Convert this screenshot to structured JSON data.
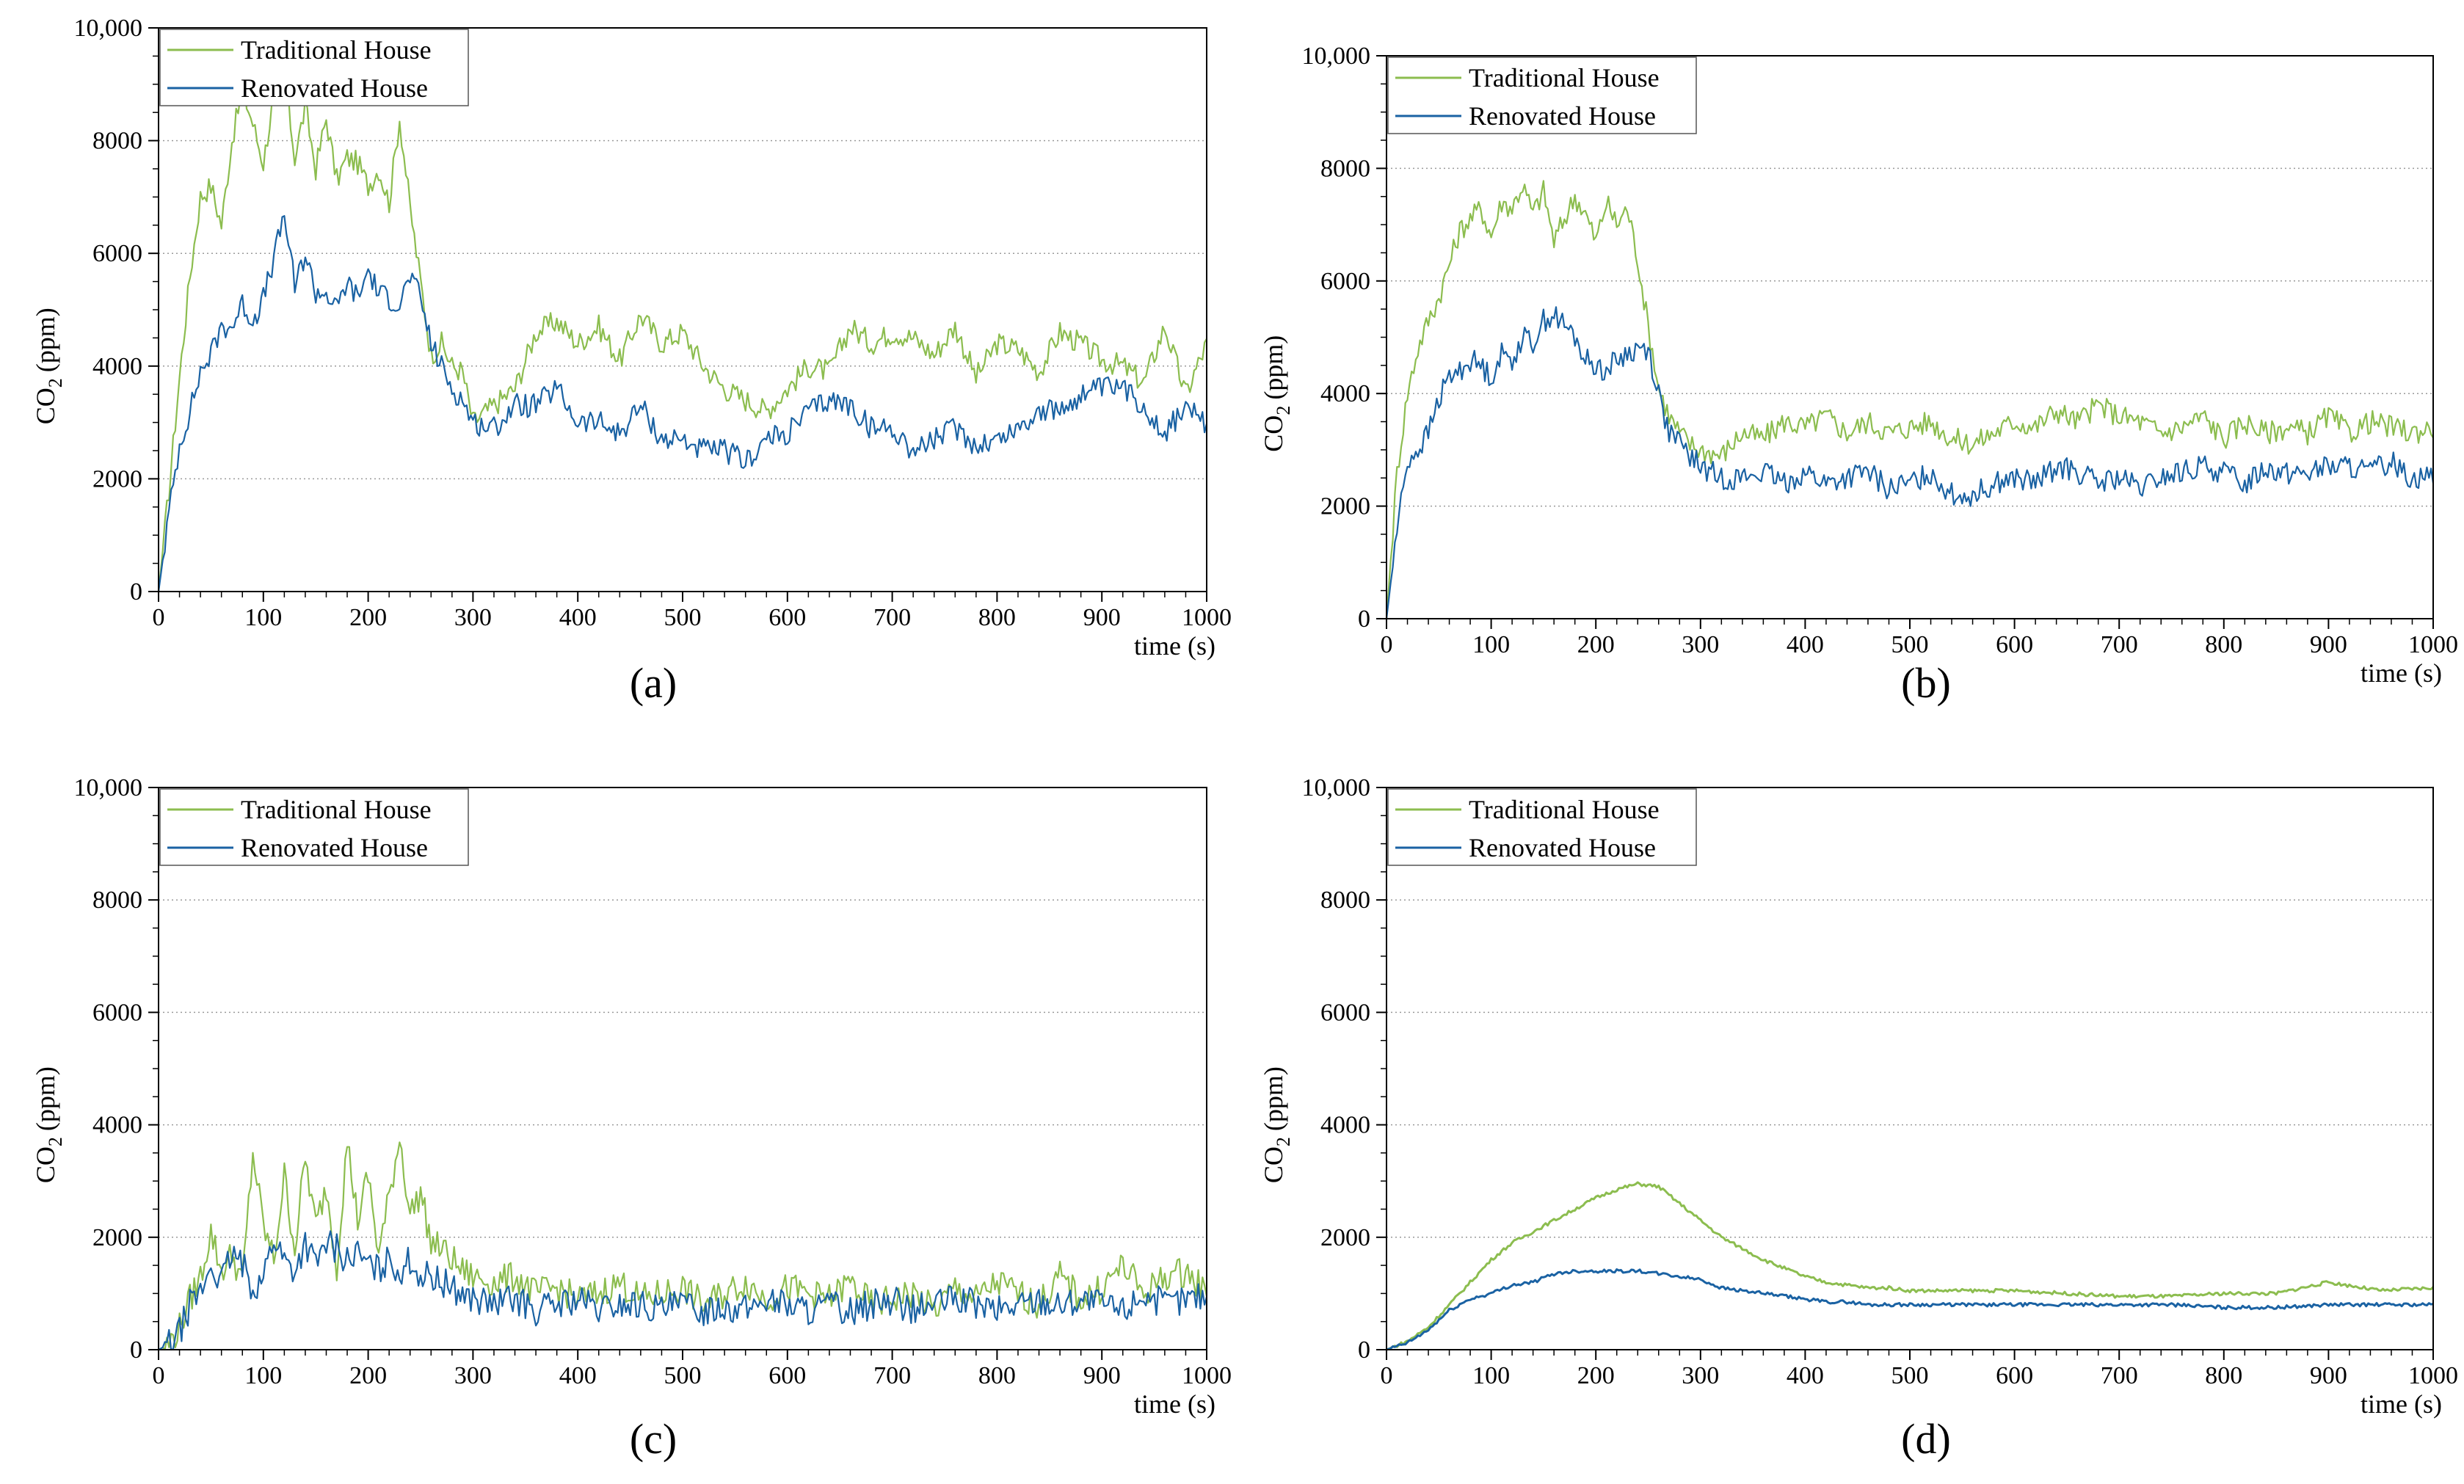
{
  "figure": {
    "x_axis_title": "time (s)",
    "y_axis_title": "CO",
    "y_axis_subscript": "2",
    "y_axis_unit": "(ppm)"
  },
  "chart_data": [
    {
      "type": "line",
      "panel_label": "(a)",
      "xlabel": "time (s)",
      "ylabel": "CO2 (ppm)",
      "xlim": [
        0,
        1000
      ],
      "ylim": [
        0,
        10000
      ],
      "x_ticks": [
        0,
        100,
        200,
        300,
        400,
        500,
        600,
        700,
        800,
        900,
        1000
      ],
      "y_ticks": [
        0,
        2000,
        4000,
        6000,
        8000,
        10000
      ],
      "y_tick_labels": [
        "0",
        "2000",
        "4000",
        "6000",
        "8000",
        "10,000"
      ],
      "grid": "horizontal dotted",
      "legend_position": "top-left",
      "x": [
        0,
        10,
        20,
        30,
        40,
        50,
        60,
        70,
        80,
        90,
        100,
        110,
        120,
        130,
        140,
        150,
        160,
        170,
        180,
        190,
        200,
        210,
        220,
        230,
        240,
        250,
        260,
        270,
        280,
        290,
        300,
        320,
        340,
        360,
        380,
        400,
        420,
        440,
        460,
        480,
        500,
        520,
        540,
        560,
        580,
        600,
        620,
        640,
        660,
        680,
        700,
        720,
        740,
        760,
        780,
        800,
        820,
        840,
        860,
        880,
        900,
        920,
        940,
        960,
        980,
        1000
      ],
      "series": [
        {
          "name": "Traditional House",
          "color": "#8cbd4f",
          "values": [
            0,
            1800,
            3800,
            5600,
            7000,
            7200,
            6500,
            8000,
            8900,
            8300,
            7600,
            8800,
            9200,
            7700,
            8600,
            7500,
            8400,
            7300,
            7700,
            7600,
            7200,
            7500,
            6900,
            8400,
            6800,
            5500,
            4200,
            4400,
            4000,
            3900,
            3000,
            3300,
            3600,
            4600,
            4800,
            4400,
            4700,
            4100,
            4900,
            4400,
            4600,
            4000,
            3600,
            3400,
            3200,
            3600,
            4000,
            3900,
            4700,
            4400,
            4600,
            4500,
            4200,
            4700,
            3800,
            4400,
            4300,
            3900,
            4600,
            4400,
            4100,
            4000,
            3700,
            4700,
            3500,
            4400
          ]
        },
        {
          "name": "Renovated House",
          "color": "#1a62a3",
          "values": [
            0,
            1400,
            2600,
            3200,
            3900,
            4200,
            4700,
            4700,
            5100,
            4800,
            5200,
            5900,
            6700,
            5400,
            6000,
            5300,
            5300,
            5000,
            5500,
            5200,
            5700,
            5300,
            5200,
            5100,
            5600,
            5200,
            4400,
            4000,
            3600,
            3400,
            3000,
            2900,
            3300,
            3300,
            3600,
            3000,
            3000,
            2800,
            3300,
            2700,
            2700,
            2500,
            2500,
            2300,
            2700,
            2800,
            3200,
            3400,
            3300,
            2900,
            2900,
            2500,
            2700,
            2900,
            2600,
            2700,
            2900,
            3200,
            3200,
            3500,
            3600,
            3600,
            3300,
            2800,
            3300,
            2900
          ]
        }
      ]
    },
    {
      "type": "line",
      "panel_label": "(b)",
      "xlabel": "time (s)",
      "ylabel": "CO2 (ppm)",
      "xlim": [
        0,
        1000
      ],
      "ylim": [
        0,
        10000
      ],
      "x_ticks": [
        0,
        100,
        200,
        300,
        400,
        500,
        600,
        700,
        800,
        900,
        1000
      ],
      "y_ticks": [
        0,
        2000,
        4000,
        6000,
        8000,
        10000
      ],
      "y_tick_labels": [
        "0",
        "2000",
        "4000",
        "6000",
        "8000",
        "10,000"
      ],
      "grid": "horizontal dotted",
      "legend_position": "top-left",
      "x": [
        0,
        10,
        20,
        30,
        40,
        50,
        60,
        70,
        80,
        90,
        100,
        110,
        120,
        130,
        140,
        150,
        160,
        170,
        180,
        190,
        200,
        210,
        220,
        230,
        240,
        250,
        260,
        270,
        280,
        290,
        300,
        320,
        340,
        360,
        380,
        400,
        420,
        440,
        460,
        480,
        500,
        520,
        540,
        560,
        580,
        600,
        620,
        640,
        660,
        680,
        700,
        720,
        740,
        760,
        780,
        800,
        820,
        840,
        860,
        880,
        900,
        920,
        940,
        960,
        980,
        1000
      ],
      "series": [
        {
          "name": "Traditional House",
          "color": "#8cbd4f",
          "values": [
            0,
            2600,
            4000,
            4800,
            5300,
            5700,
            6300,
            6900,
            7100,
            7300,
            6800,
            7400,
            7300,
            7700,
            7200,
            7600,
            6700,
            7100,
            7500,
            7200,
            6700,
            7400,
            7000,
            7300,
            6400,
            5200,
            4100,
            3600,
            3300,
            3100,
            3000,
            2900,
            3300,
            3200,
            3500,
            3400,
            3600,
            3300,
            3500,
            3300,
            3400,
            3500,
            3200,
            3100,
            3300,
            3500,
            3400,
            3700,
            3500,
            3800,
            3600,
            3500,
            3300,
            3400,
            3600,
            3200,
            3500,
            3300,
            3400,
            3300,
            3600,
            3300,
            3500,
            3400,
            3300,
            3400
          ]
        },
        {
          "name": "Renovated House",
          "color": "#1a62a3",
          "values": [
            0,
            1600,
            2800,
            3000,
            3300,
            3900,
            4300,
            4400,
            4600,
            4500,
            4300,
            4700,
            4600,
            5000,
            4900,
            5300,
            5400,
            5200,
            5000,
            4600,
            4500,
            4400,
            4600,
            4700,
            4800,
            4800,
            4000,
            3300,
            3100,
            2900,
            2700,
            2500,
            2500,
            2600,
            2400,
            2600,
            2400,
            2500,
            2600,
            2300,
            2400,
            2600,
            2200,
            2200,
            2400,
            2500,
            2400,
            2700,
            2600,
            2400,
            2500,
            2300,
            2500,
            2600,
            2700,
            2600,
            2400,
            2700,
            2600,
            2600,
            2700,
            2700,
            2600,
            2800,
            2500,
            2600
          ]
        }
      ]
    },
    {
      "type": "line",
      "panel_label": "(c)",
      "xlabel": "time (s)",
      "ylabel": "CO2 (ppm)",
      "xlim": [
        0,
        1000
      ],
      "ylim": [
        0,
        10000
      ],
      "x_ticks": [
        0,
        100,
        200,
        300,
        400,
        500,
        600,
        700,
        800,
        900,
        1000
      ],
      "y_ticks": [
        0,
        2000,
        4000,
        6000,
        8000,
        10000
      ],
      "y_tick_labels": [
        "0",
        "2000",
        "4000",
        "6000",
        "8000",
        "10,000"
      ],
      "grid": "horizontal dotted",
      "legend_position": "top-left",
      "x": [
        0,
        10,
        20,
        30,
        40,
        50,
        60,
        70,
        80,
        90,
        100,
        110,
        120,
        130,
        140,
        150,
        160,
        170,
        180,
        190,
        200,
        210,
        220,
        230,
        240,
        250,
        260,
        270,
        280,
        290,
        300,
        320,
        340,
        360,
        380,
        400,
        420,
        440,
        460,
        480,
        500,
        520,
        540,
        560,
        580,
        600,
        620,
        640,
        660,
        680,
        700,
        720,
        740,
        760,
        780,
        800,
        820,
        840,
        860,
        880,
        900,
        920,
        940,
        960,
        980,
        1000
      ],
      "series": [
        {
          "name": "Traditional House",
          "color": "#8cbd4f",
          "values": [
            0,
            100,
            400,
            900,
            1300,
            2100,
            1400,
            1700,
            1200,
            3500,
            2200,
            1600,
            3100,
            1800,
            3400,
            2200,
            2900,
            1500,
            3700,
            2300,
            3100,
            1700,
            2700,
            3800,
            2400,
            2800,
            1900,
            1800,
            1600,
            1400,
            1300,
            1200,
            1300,
            1000,
            1100,
            900,
            1000,
            1200,
            900,
            1000,
            1100,
            800,
            1000,
            1200,
            900,
            1100,
            1000,
            900,
            1200,
            800,
            900,
            1000,
            700,
            1100,
            900,
            1200,
            1000,
            800,
            1300,
            900,
            1100,
            1500,
            1000,
            1300,
            1400,
            1000
          ]
        },
        {
          "name": "Renovated House",
          "color": "#1a62a3",
          "values": [
            0,
            100,
            300,
            800,
            1000,
            1500,
            1200,
            1700,
            1500,
            1100,
            1300,
            2000,
            1600,
            1400,
            1900,
            1500,
            1900,
            1800,
            1600,
            1700,
            1500,
            1400,
            1600,
            1400,
            1600,
            1300,
            1300,
            1200,
            1100,
            1000,
            900,
            800,
            900,
            700,
            800,
            900,
            700,
            800,
            800,
            700,
            800,
            700,
            800,
            700,
            900,
            800,
            700,
            800,
            700,
            800,
            900,
            700,
            800,
            900,
            800,
            700,
            800,
            900,
            800,
            900,
            800,
            700,
            1000,
            800,
            900,
            1000
          ]
        }
      ]
    },
    {
      "type": "line",
      "panel_label": "(d)",
      "xlabel": "time (s)",
      "ylabel": "CO2 (ppm)",
      "xlim": [
        0,
        1000
      ],
      "ylim": [
        0,
        10000
      ],
      "x_ticks": [
        0,
        100,
        200,
        300,
        400,
        500,
        600,
        700,
        800,
        900,
        1000
      ],
      "y_ticks": [
        0,
        2000,
        4000,
        6000,
        8000,
        10000
      ],
      "y_tick_labels": [
        "0",
        "2000",
        "4000",
        "6000",
        "8000",
        "10,000"
      ],
      "grid": "horizontal dotted",
      "legend_position": "top-left",
      "x": [
        0,
        20,
        40,
        60,
        80,
        100,
        120,
        140,
        160,
        180,
        200,
        220,
        240,
        260,
        280,
        300,
        320,
        340,
        360,
        380,
        400,
        420,
        440,
        460,
        480,
        500,
        550,
        600,
        650,
        700,
        750,
        800,
        850,
        900,
        950,
        1000
      ],
      "series": [
        {
          "name": "Traditional House",
          "color": "#8cbd4f",
          "values": [
            0,
            150,
            400,
            800,
            1200,
            1600,
            1900,
            2100,
            2300,
            2500,
            2700,
            2850,
            2950,
            2900,
            2600,
            2300,
            2000,
            1800,
            1600,
            1450,
            1300,
            1200,
            1150,
            1100,
            1100,
            1050,
            1050,
            1050,
            1000,
            950,
            950,
            1000,
            1000,
            1200,
            1050,
            1100
          ]
        },
        {
          "name": "Renovated House",
          "color": "#1a62a3",
          "values": [
            0,
            120,
            350,
            700,
            900,
            1000,
            1150,
            1200,
            1350,
            1400,
            1400,
            1400,
            1400,
            1350,
            1300,
            1250,
            1100,
            1050,
            1000,
            950,
            900,
            850,
            850,
            800,
            800,
            800,
            800,
            800,
            800,
            800,
            800,
            750,
            750,
            800,
            800,
            800
          ]
        }
      ]
    }
  ]
}
